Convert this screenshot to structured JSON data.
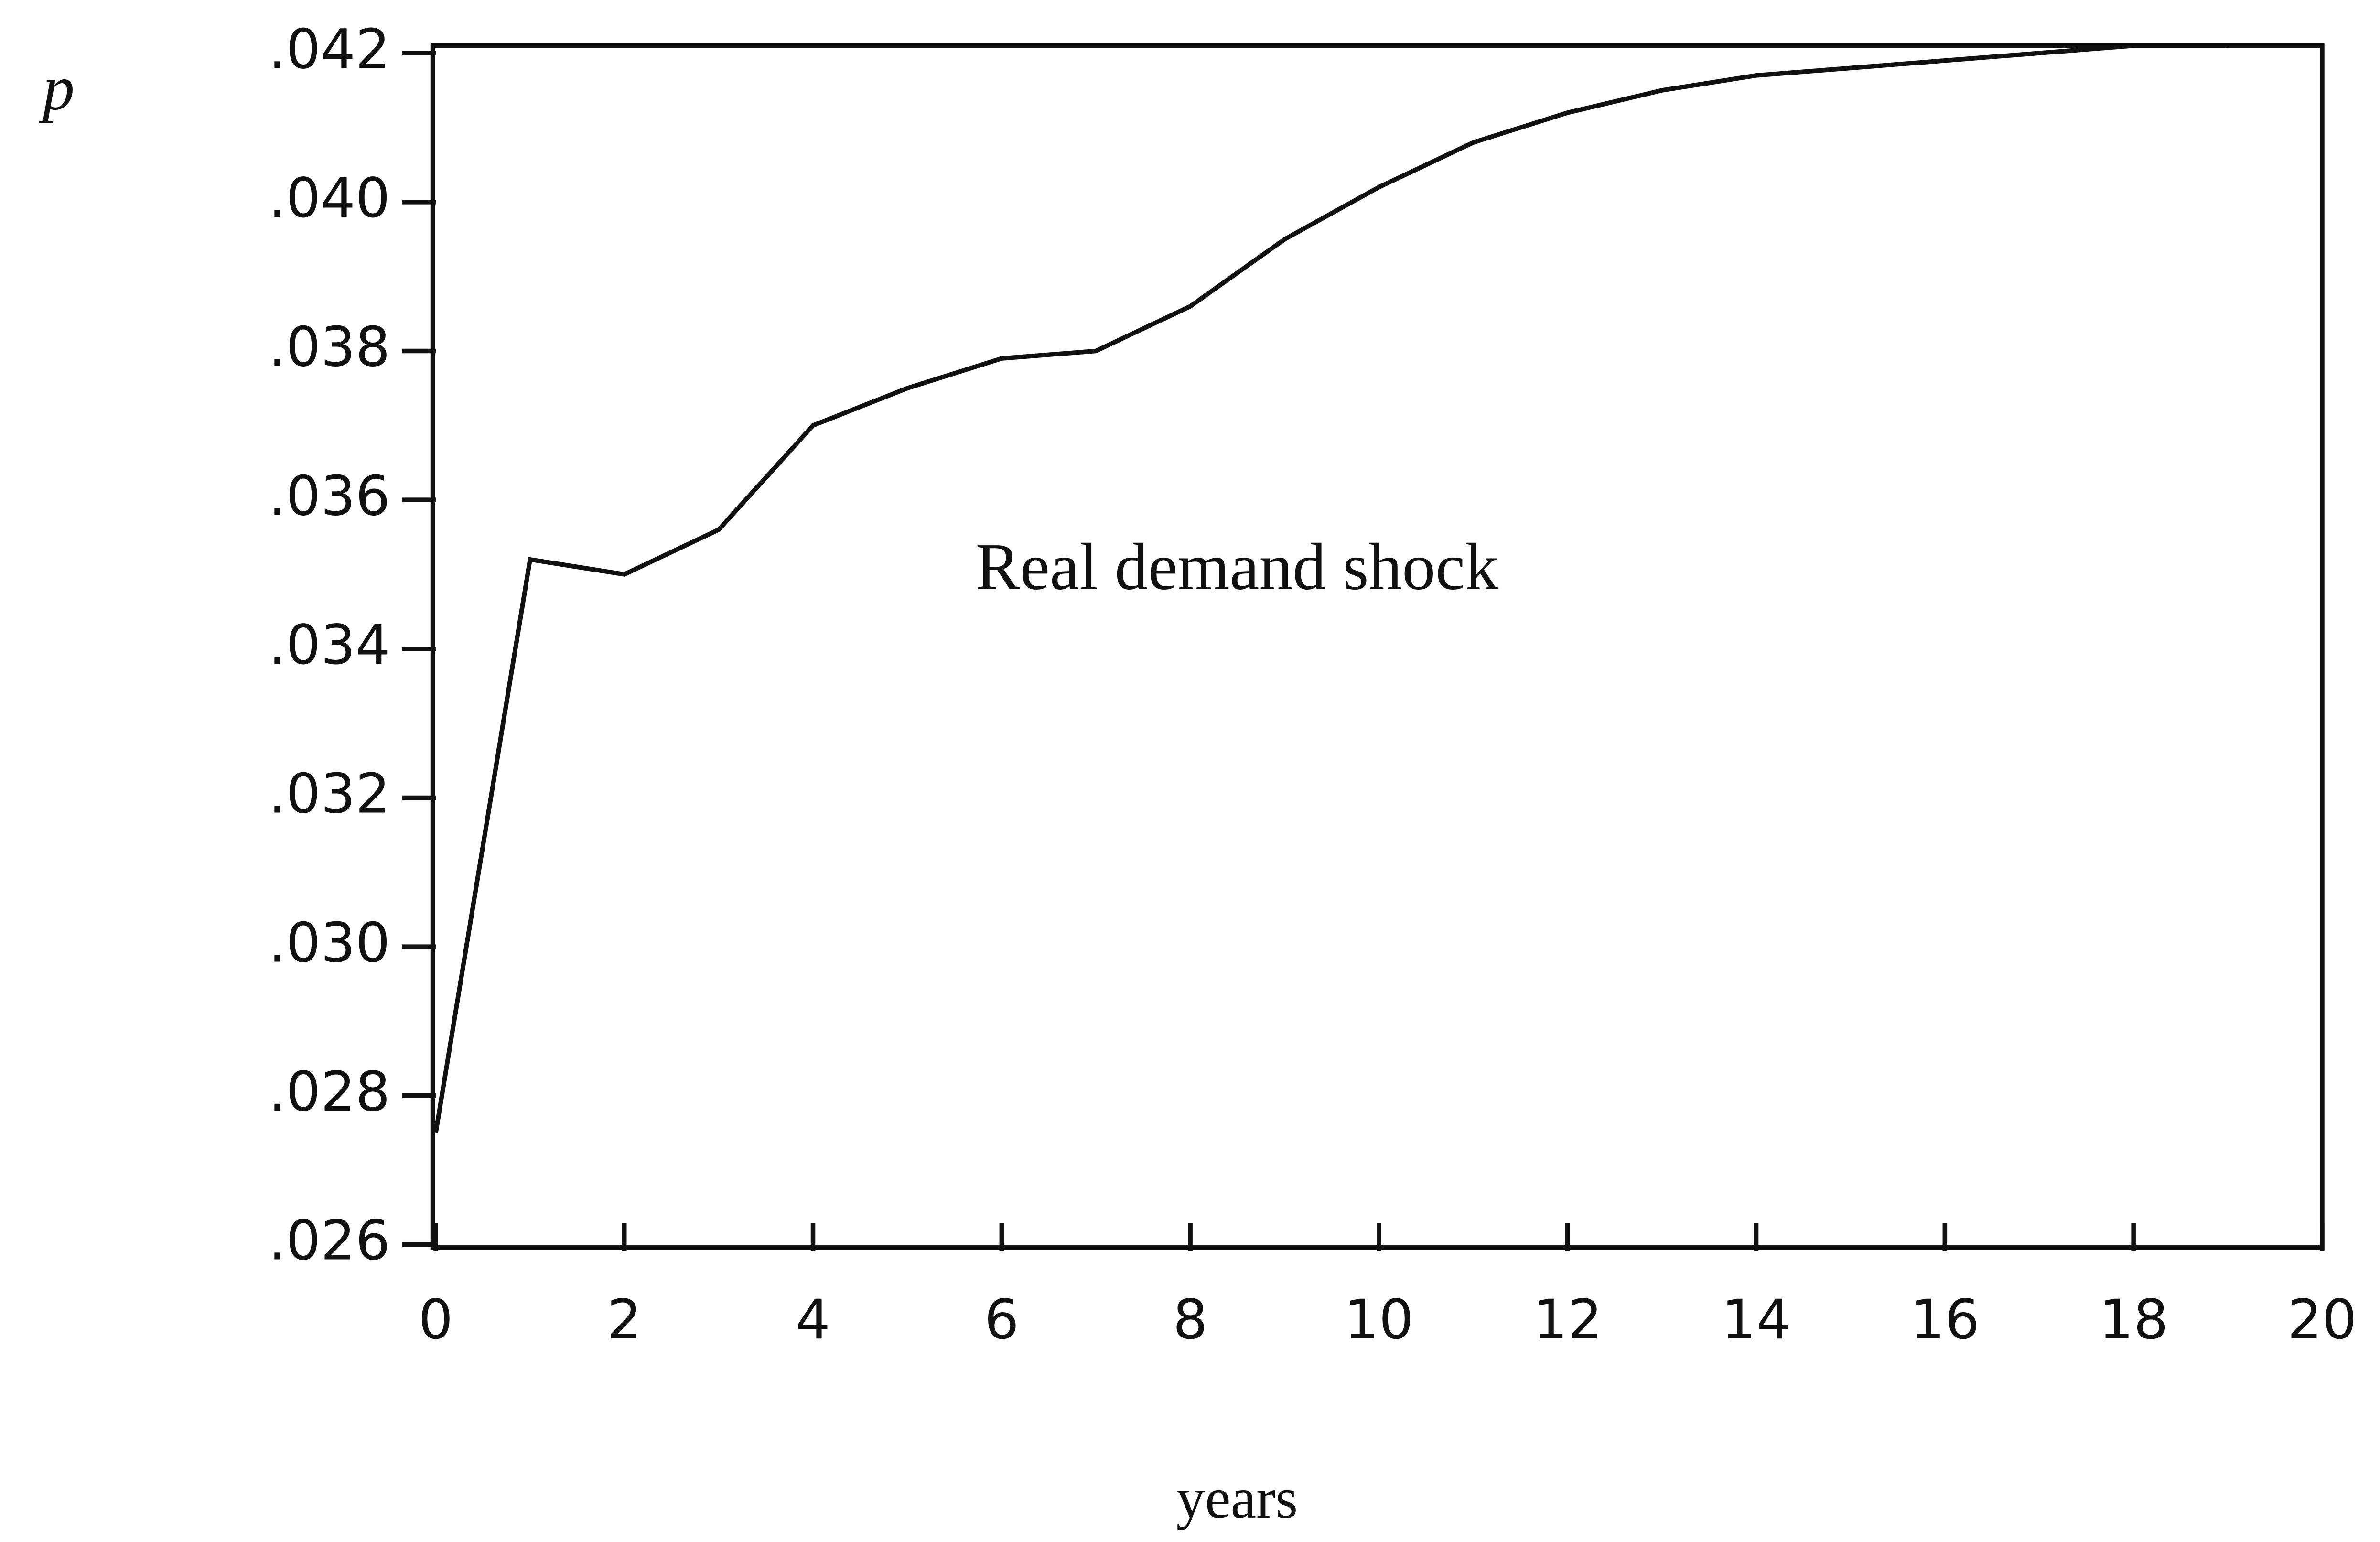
{
  "chart_data": {
    "type": "line",
    "y_label": "p",
    "x_label": "years",
    "annotation": "Real demand shock",
    "x": [
      0,
      1,
      2,
      3,
      4,
      5,
      6,
      7,
      8,
      9,
      10,
      11,
      12,
      13,
      14,
      15,
      16,
      17,
      18,
      19
    ],
    "series": [
      {
        "color": "#111111",
        "values": [
          0.0275,
          0.0352,
          0.035,
          0.0356,
          0.037,
          0.0375,
          0.0379,
          0.038,
          0.0386,
          0.0395,
          0.0402,
          0.0408,
          0.0412,
          0.0415,
          0.0417,
          0.0418,
          0.0419,
          0.042,
          0.0421,
          0.0421
        ]
      }
    ],
    "xlim": [
      0,
      20
    ],
    "xticks": [
      0,
      2,
      4,
      6,
      8,
      10,
      12,
      14,
      16,
      18,
      20
    ],
    "ylim": [
      0.026,
      0.042
    ],
    "yticks": [
      {
        "value": 0.026,
        "label": ".026"
      },
      {
        "value": 0.028,
        "label": ".028"
      },
      {
        "value": 0.03,
        "label": ".030"
      },
      {
        "value": 0.032,
        "label": ".032"
      },
      {
        "value": 0.034,
        "label": ".034"
      },
      {
        "value": 0.036,
        "label": ".036"
      },
      {
        "value": 0.038,
        "label": ".038"
      },
      {
        "value": 0.04,
        "label": ".040"
      },
      {
        "value": 0.042,
        "label": ".042"
      }
    ],
    "grid": false
  }
}
